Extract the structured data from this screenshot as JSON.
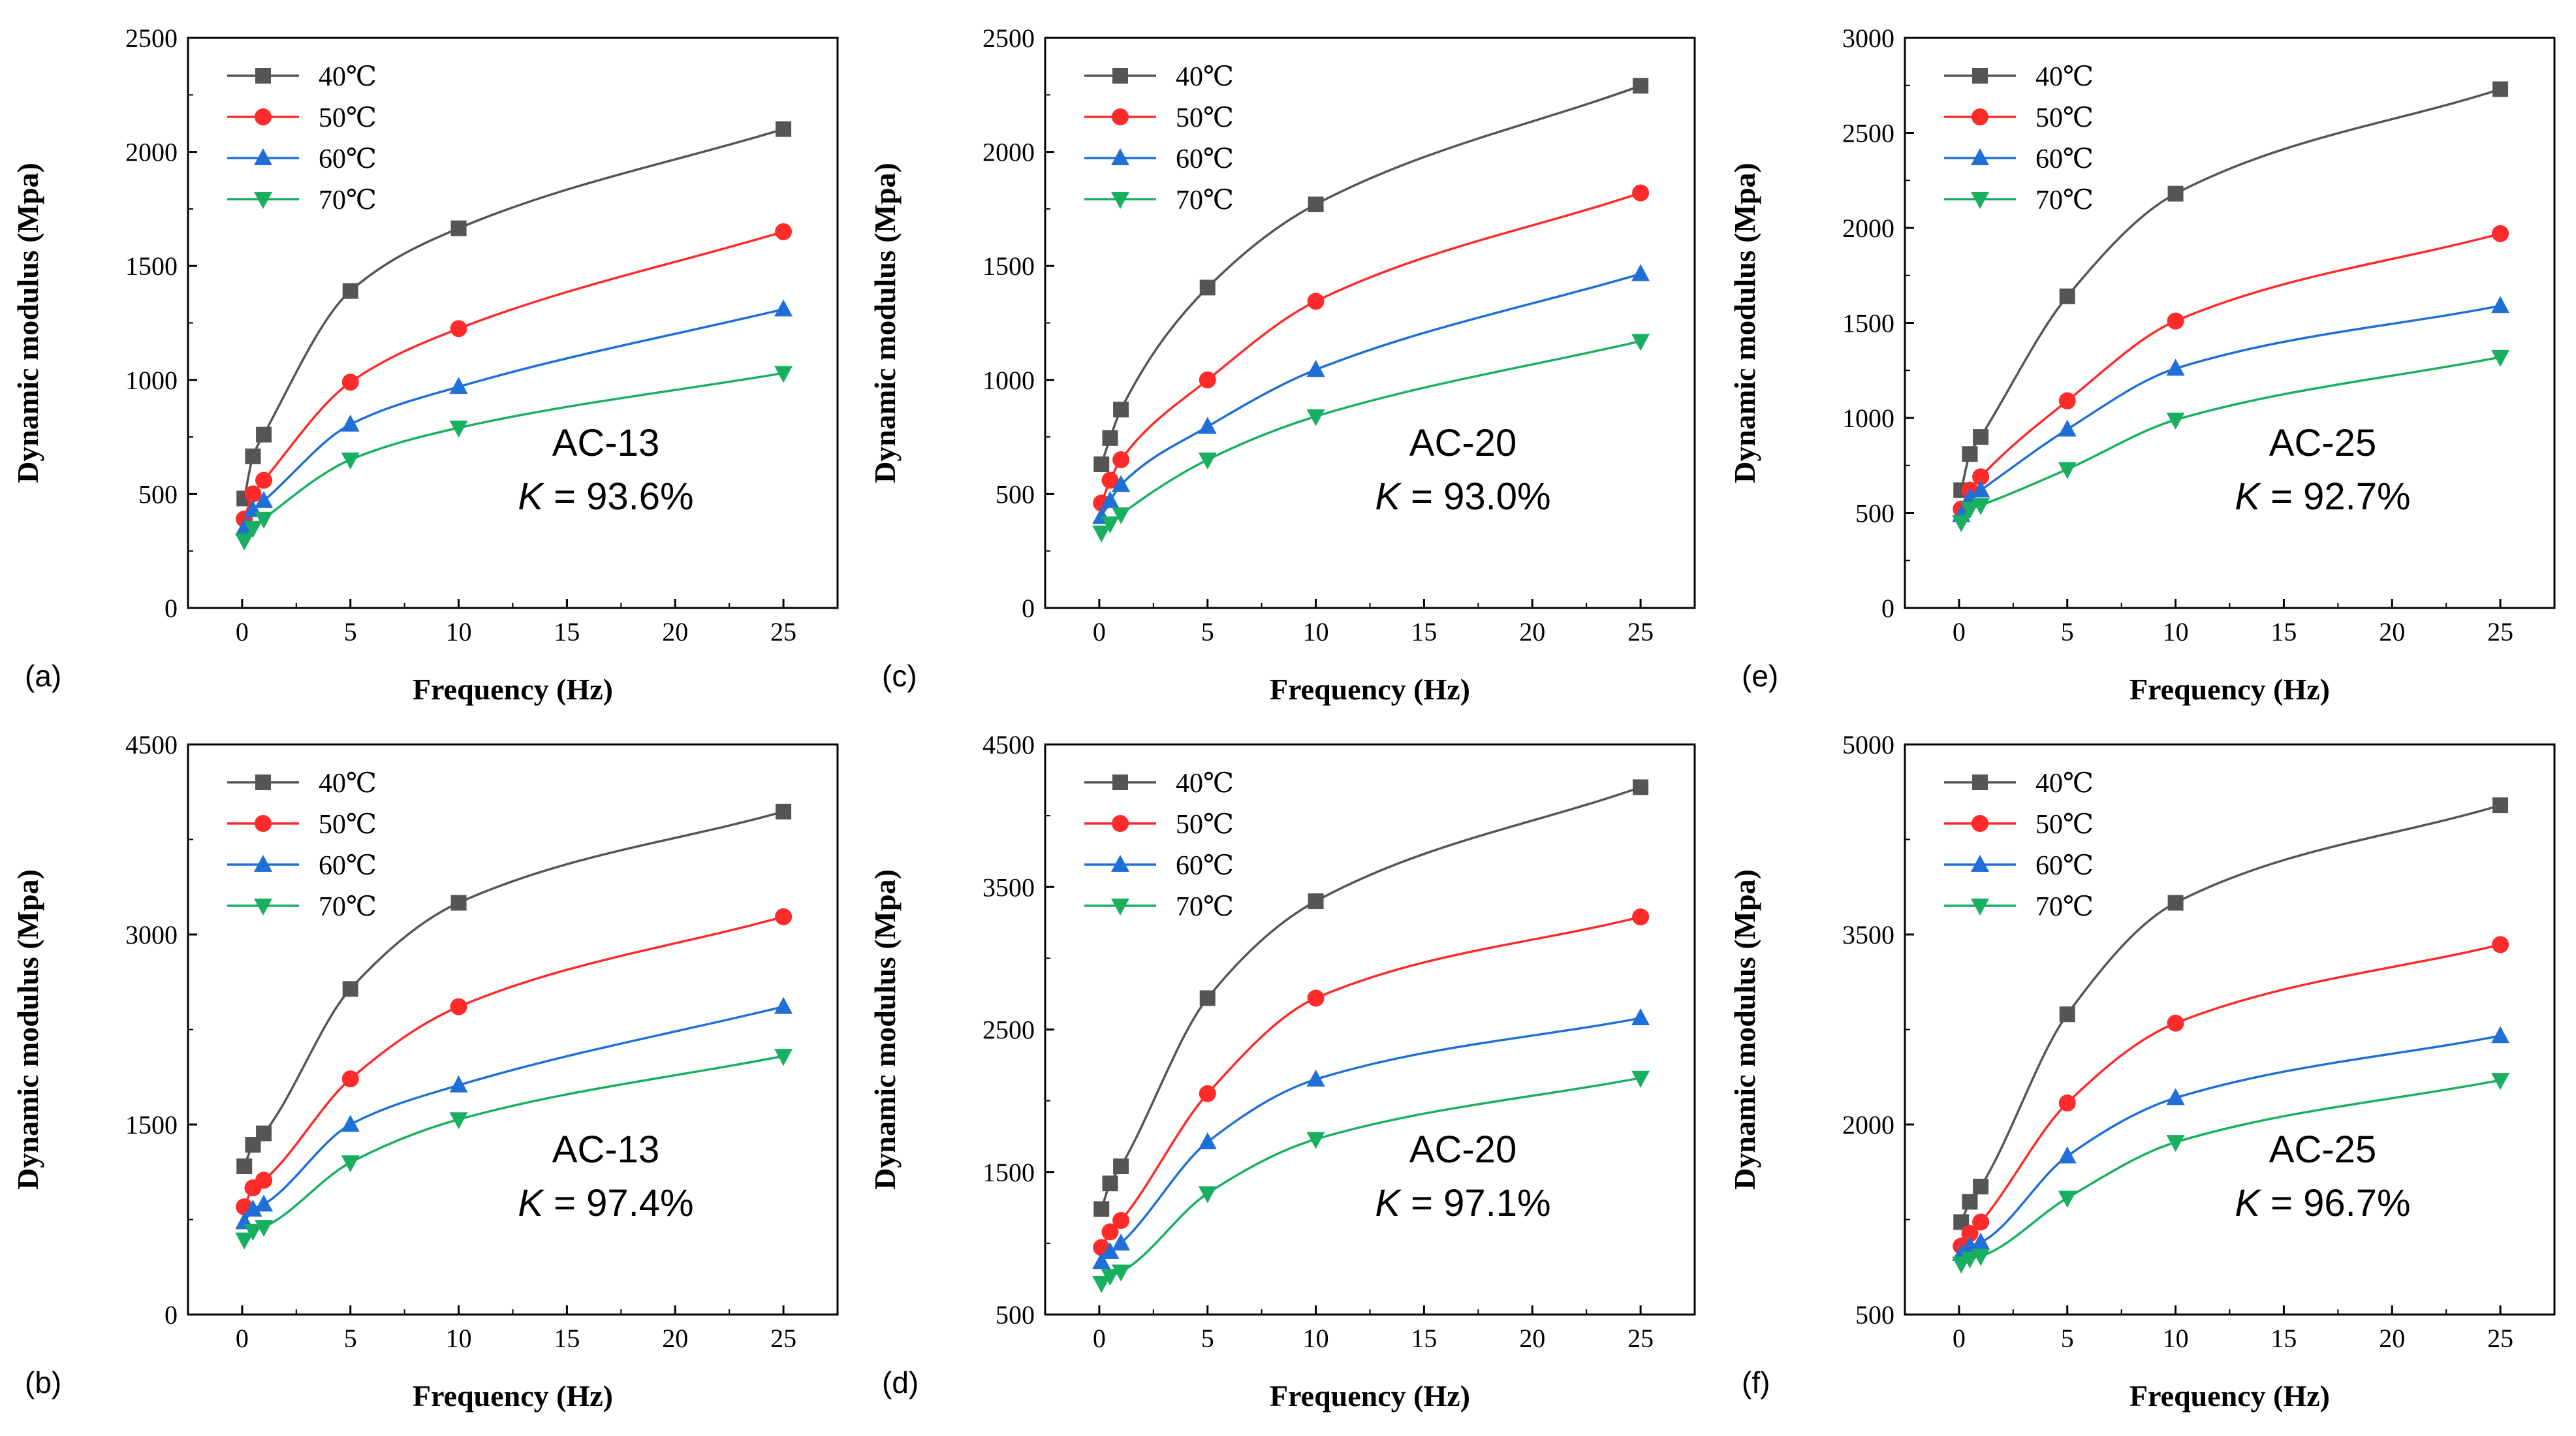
{
  "chart_data": [
    {
      "type": "line",
      "panel_label": "(a)",
      "xlabel": "Frequency (Hz)",
      "ylabel": "Dynamic modulus (Mpa)",
      "xlim": [
        -2.5,
        27.5
      ],
      "ylim": [
        0,
        2500
      ],
      "xticks": [
        0,
        5,
        10,
        15,
        20,
        25
      ],
      "yticks": [
        0,
        500,
        1000,
        1500,
        2000,
        2500
      ],
      "x": [
        0.1,
        0.5,
        1,
        5,
        10,
        25
      ],
      "series": [
        {
          "name": "40℃",
          "color": "#555555",
          "marker": "square",
          "values": [
            480,
            665,
            760,
            1390,
            1665,
            2100
          ]
        },
        {
          "name": "50℃",
          "color": "#ff2a2a",
          "marker": "circle",
          "values": [
            390,
            500,
            560,
            990,
            1225,
            1650
          ]
        },
        {
          "name": "60℃",
          "color": "#1f6fd6",
          "marker": "triangle-up",
          "values": [
            350,
            430,
            470,
            805,
            970,
            1310
          ]
        },
        {
          "name": "70℃",
          "color": "#18b060",
          "marker": "triangle-down",
          "values": [
            295,
            350,
            390,
            650,
            790,
            1030
          ]
        }
      ],
      "annotation_lines": [
        "AC-13",
        "93.6%"
      ],
      "legend": "top-left"
    },
    {
      "type": "line",
      "panel_label": "(b)",
      "xlabel": "Frequency (Hz)",
      "ylabel": "Dynamic modulus (Mpa)",
      "xlim": [
        -2.5,
        27.5
      ],
      "ylim": [
        0,
        4500
      ],
      "xticks": [
        0,
        5,
        10,
        15,
        20,
        25
      ],
      "yticks": [
        0,
        1500,
        3000,
        4500
      ],
      "x": [
        0.1,
        0.5,
        1,
        5,
        10,
        25
      ],
      "series": [
        {
          "name": "40℃",
          "color": "#555555",
          "marker": "square",
          "values": [
            1170,
            1340,
            1430,
            2570,
            3250,
            3970
          ]
        },
        {
          "name": "50℃",
          "color": "#ff2a2a",
          "marker": "circle",
          "values": [
            850,
            1000,
            1060,
            1860,
            2430,
            3140
          ]
        },
        {
          "name": "60℃",
          "color": "#1f6fd6",
          "marker": "triangle-up",
          "values": [
            730,
            830,
            870,
            1500,
            1810,
            2430
          ]
        },
        {
          "name": "70℃",
          "color": "#18b060",
          "marker": "triangle-down",
          "values": [
            590,
            660,
            690,
            1200,
            1540,
            2040
          ]
        }
      ],
      "annotation_lines": [
        "AC-13",
        "97.4%"
      ],
      "legend": "top-left"
    },
    {
      "type": "line",
      "panel_label": "(c)",
      "xlabel": "Frequency (Hz)",
      "ylabel": "Dynamic modulus (Mpa)",
      "xlim": [
        -2.5,
        27.5
      ],
      "ylim": [
        0,
        2500
      ],
      "xticks": [
        0,
        5,
        10,
        15,
        20,
        25
      ],
      "yticks": [
        0,
        500,
        1000,
        1500,
        2000,
        2500
      ],
      "x": [
        0.1,
        0.5,
        1,
        5,
        10,
        25
      ],
      "series": [
        {
          "name": "40℃",
          "color": "#555555",
          "marker": "square",
          "values": [
            630,
            745,
            870,
            1405,
            1770,
            2290
          ]
        },
        {
          "name": "50℃",
          "color": "#ff2a2a",
          "marker": "circle",
          "values": [
            460,
            560,
            650,
            1000,
            1345,
            1820
          ]
        },
        {
          "name": "60℃",
          "color": "#1f6fd6",
          "marker": "triangle-up",
          "values": [
            400,
            470,
            540,
            795,
            1045,
            1465
          ]
        },
        {
          "name": "70℃",
          "color": "#18b060",
          "marker": "triangle-down",
          "values": [
            330,
            370,
            410,
            650,
            840,
            1170
          ]
        }
      ],
      "annotation_lines": [
        "AC-20",
        "93.0%"
      ],
      "legend": "top-left"
    },
    {
      "type": "line",
      "panel_label": "(d)",
      "xlabel": "Frequency (Hz)",
      "ylabel": "Dynamic modulus (Mpa)",
      "xlim": [
        -2.5,
        27.5
      ],
      "ylim": [
        500,
        4500
      ],
      "xticks": [
        0,
        5,
        10,
        15,
        20,
        25
      ],
      "yticks": [
        500,
        1500,
        2500,
        3500,
        4500
      ],
      "x": [
        0.1,
        0.5,
        1,
        5,
        10,
        25
      ],
      "series": [
        {
          "name": "40℃",
          "color": "#555555",
          "marker": "square",
          "values": [
            1240,
            1420,
            1540,
            2720,
            3400,
            4200
          ]
        },
        {
          "name": "50℃",
          "color": "#ff2a2a",
          "marker": "circle",
          "values": [
            970,
            1080,
            1160,
            2050,
            2720,
            3290
          ]
        },
        {
          "name": "60℃",
          "color": "#1f6fd6",
          "marker": "triangle-up",
          "values": [
            870,
            940,
            1000,
            1710,
            2150,
            2580
          ]
        },
        {
          "name": "70℃",
          "color": "#18b060",
          "marker": "triangle-down",
          "values": [
            720,
            770,
            800,
            1350,
            1730,
            2160
          ]
        }
      ],
      "annotation_lines": [
        "AC-20",
        "97.1%"
      ],
      "legend": "top-left"
    },
    {
      "type": "line",
      "panel_label": "(e)",
      "xlabel": "Frequency (Hz)",
      "ylabel": "Dynamic modulus (Mpa)",
      "xlim": [
        -2.5,
        27.5
      ],
      "ylim": [
        0,
        3000
      ],
      "xticks": [
        0,
        5,
        10,
        15,
        20,
        25
      ],
      "yticks": [
        0,
        500,
        1000,
        1500,
        2000,
        2500,
        3000
      ],
      "x": [
        0.1,
        0.5,
        1,
        5,
        10,
        25
      ],
      "series": [
        {
          "name": "40℃",
          "color": "#555555",
          "marker": "square",
          "values": [
            620,
            810,
            900,
            1640,
            2180,
            2730
          ]
        },
        {
          "name": "50℃",
          "color": "#ff2a2a",
          "marker": "circle",
          "values": [
            520,
            620,
            690,
            1090,
            1510,
            1970
          ]
        },
        {
          "name": "60℃",
          "color": "#1f6fd6",
          "marker": "triangle-up",
          "values": [
            490,
            580,
            620,
            940,
            1260,
            1590
          ]
        },
        {
          "name": "70℃",
          "color": "#18b060",
          "marker": "triangle-down",
          "values": [
            450,
            520,
            540,
            730,
            990,
            1320
          ]
        }
      ],
      "annotation_lines": [
        "AC-25",
        "92.7%"
      ],
      "legend": "top-left"
    },
    {
      "type": "line",
      "panel_label": "(f)",
      "xlabel": "Frequency (Hz)",
      "ylabel": "Dynamic modulus (Mpa)",
      "xlim": [
        -2.5,
        27.5
      ],
      "ylim": [
        500,
        5000
      ],
      "xticks": [
        0,
        5,
        10,
        15,
        20,
        25
      ],
      "yticks": [
        500,
        2000,
        3500,
        5000
      ],
      "x": [
        0.1,
        0.5,
        1,
        5,
        10,
        25
      ],
      "series": [
        {
          "name": "40℃",
          "color": "#555555",
          "marker": "square",
          "values": [
            1230,
            1390,
            1510,
            2870,
            3750,
            4520
          ]
        },
        {
          "name": "50℃",
          "color": "#ff2a2a",
          "marker": "circle",
          "values": [
            1040,
            1140,
            1230,
            2170,
            2800,
            3420
          ]
        },
        {
          "name": "60℃",
          "color": "#1f6fd6",
          "marker": "triangle-up",
          "values": [
            980,
            1040,
            1070,
            1750,
            2210,
            2700
          ]
        },
        {
          "name": "70℃",
          "color": "#18b060",
          "marker": "triangle-down",
          "values": [
            900,
            940,
            960,
            1420,
            1860,
            2350
          ]
        }
      ],
      "annotation_lines": [
        "AC-25",
        "96.7%"
      ],
      "legend": "top-left"
    }
  ]
}
